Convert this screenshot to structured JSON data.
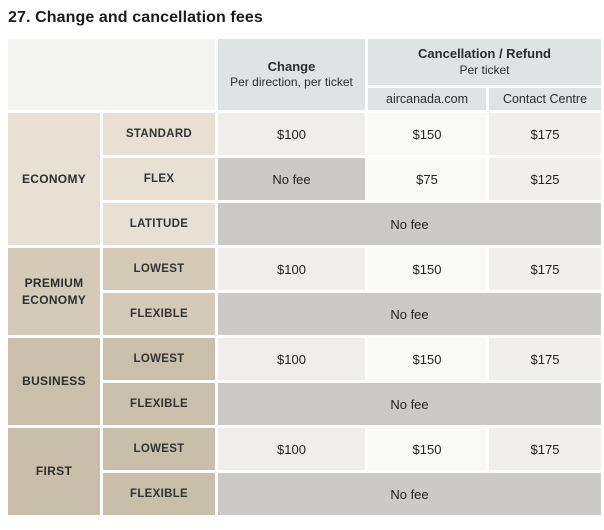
{
  "title": "27. Change and cancellation fees",
  "table": {
    "header": {
      "change": {
        "title": "Change",
        "subtitle": "Per direction, per ticket"
      },
      "cancellation": {
        "title": "Cancellation / Refund",
        "subtitle": "Per ticket"
      },
      "channels": [
        "aircanada.com",
        "Contact Centre"
      ]
    },
    "groups": [
      {
        "cabin": "ECONOMY",
        "color": "#e7e0d3",
        "rows": [
          {
            "fare": "STANDARD",
            "change": "$100",
            "web": "$150",
            "contact": "$175"
          },
          {
            "fare": "FLEX",
            "change": "No fee",
            "web": "$75",
            "contact": "$125"
          },
          {
            "fare": "LATITUDE",
            "all": "No fee"
          }
        ]
      },
      {
        "cabin": "PREMIUM ECONOMY",
        "color": "#d4cab7",
        "rows": [
          {
            "fare": "LOWEST",
            "change": "$100",
            "web": "$150",
            "contact": "$175"
          },
          {
            "fare": "FLEXIBLE",
            "all": "No fee"
          }
        ]
      },
      {
        "cabin": "BUSINESS",
        "color": "#cabfaa",
        "rows": [
          {
            "fare": "LOWEST",
            "change": "$100",
            "web": "$150",
            "contact": "$175"
          },
          {
            "fare": "FLEXIBLE",
            "all": "No fee"
          }
        ]
      },
      {
        "cabin": "FIRST",
        "color": "#c9bea9",
        "rows": [
          {
            "fare": "LOWEST",
            "change": "$100",
            "web": "$150",
            "contact": "$175"
          },
          {
            "fare": "FLEXIBLE",
            "all": "No fee"
          }
        ]
      }
    ],
    "no_fee_label": "No fee"
  },
  "colors": {
    "header-bg": "#dfe3e4",
    "corner-bg": "#f4f4f2",
    "col-change-bg": "#efeeec",
    "col-web-bg": "#f9f9f8",
    "col-contact-bg": "#f0efee",
    "no-fee-bg": "#cbcac8"
  }
}
